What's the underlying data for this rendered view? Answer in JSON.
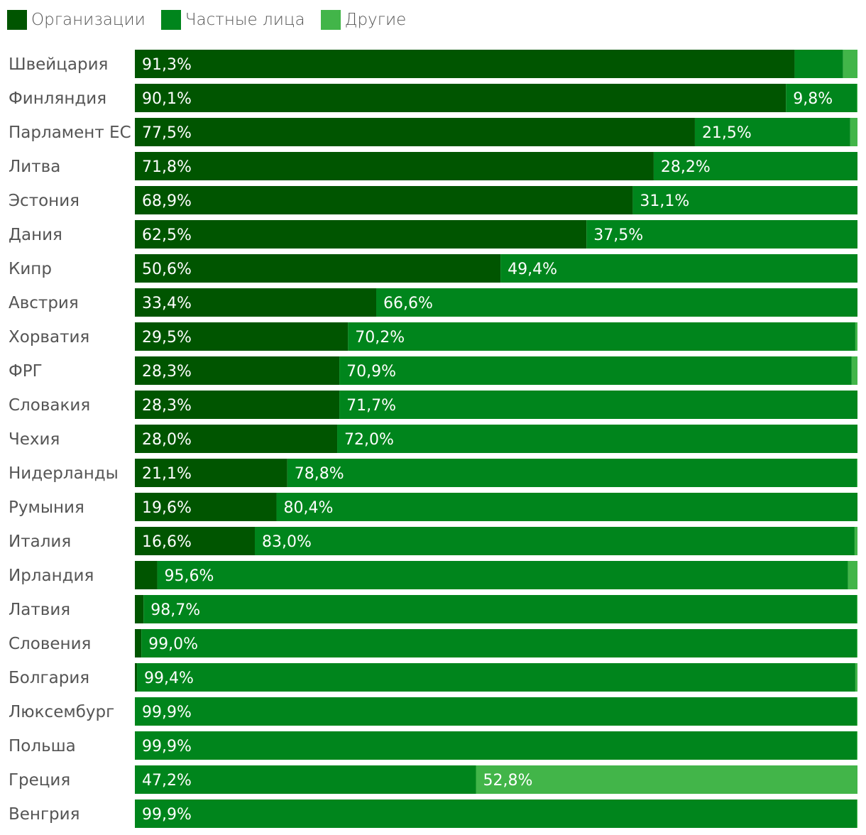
{
  "legend": [
    {
      "label": "Организации",
      "color": "#005500"
    },
    {
      "label": "Частные лица",
      "color": "#00851c"
    },
    {
      "label": "Другие",
      "color": "#42b549"
    }
  ],
  "chart_data": {
    "type": "bar",
    "orientation": "horizontal",
    "stacked": true,
    "legend_position": "top-left",
    "grid": false,
    "xlim": [
      0,
      100
    ],
    "categories": [
      "Швейцария",
      "Финляндия",
      "Парламент ЕС",
      "Литва",
      "Эстония",
      "Дания",
      "Кипр",
      "Австрия",
      "Хорватия",
      "ФРГ",
      "Словакия",
      "Чехия",
      "Нидерланды",
      "Румыния",
      "Италия",
      "Ирландия",
      "Латвия",
      "Словения",
      "Болгария",
      "Люксембург",
      "Польша",
      "Греция",
      "Венгрия"
    ],
    "series": [
      {
        "name": "Организации",
        "color": "#005500",
        "values": [
          91.3,
          90.1,
          77.5,
          71.8,
          68.9,
          62.5,
          50.6,
          33.4,
          29.5,
          28.3,
          28.3,
          28.0,
          21.1,
          19.6,
          16.6,
          3.1,
          1.2,
          0.9,
          0.3,
          0.0,
          0.0,
          0.0,
          0.0
        ],
        "labels": [
          "91,3%",
          "90,1%",
          "77,5%",
          "71,8%",
          "68,9%",
          "62,5%",
          "50,6%",
          "33,4%",
          "29,5%",
          "28,3%",
          "28,3%",
          "28,0%",
          "21,1%",
          "19,6%",
          "16,6%",
          "",
          "",
          "",
          "",
          "",
          "",
          "",
          ""
        ]
      },
      {
        "name": "Частные лица",
        "color": "#00851c",
        "values": [
          6.7,
          9.8,
          21.5,
          28.2,
          31.1,
          37.5,
          49.4,
          66.6,
          70.2,
          70.9,
          71.7,
          72.0,
          78.8,
          80.4,
          83.0,
          95.6,
          98.7,
          99.0,
          99.4,
          99.9,
          99.9,
          47.2,
          99.9
        ],
        "labels": [
          "",
          "9,8%",
          "21,5%",
          "28,2%",
          "31,1%",
          "37,5%",
          "49,4%",
          "66,6%",
          "70,2%",
          "70,9%",
          "71,7%",
          "72,0%",
          "78,8%",
          "80,4%",
          "83,0%",
          "95,6%",
          "98,7%",
          "99,0%",
          "99,4%",
          "99,9%",
          "99,9%",
          "47,2%",
          "99,9%"
        ]
      },
      {
        "name": "Другие",
        "color": "#42b549",
        "values": [
          2.0,
          0.1,
          1.0,
          0.0,
          0.0,
          0.0,
          0.0,
          0.0,
          0.3,
          0.8,
          0.0,
          0.0,
          0.1,
          0.0,
          0.4,
          1.3,
          0.1,
          0.1,
          0.3,
          0.1,
          0.1,
          52.8,
          0.1
        ],
        "labels": [
          "",
          "",
          "",
          "",
          "",
          "",
          "",
          "",
          "",
          "",
          "",
          "",
          "",
          "",
          "",
          "",
          "",
          "",
          "",
          "",
          "",
          "52,8%",
          ""
        ]
      }
    ]
  }
}
